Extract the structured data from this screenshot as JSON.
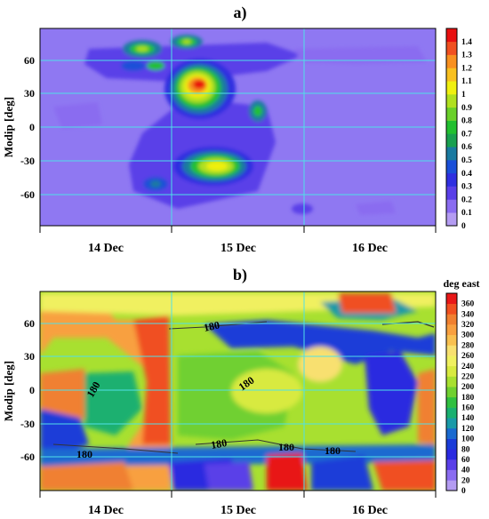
{
  "chart_data": [
    {
      "type": "heatmap",
      "panel_label": "a)",
      "ylabel": "Modip [deg]",
      "xlabel": "",
      "x_ticks": [
        "14 Dec",
        "15 Dec",
        "16 Dec"
      ],
      "y_ticks": [
        "60",
        "30",
        "0",
        "-30",
        "-60"
      ],
      "ylim": [
        -90,
        90
      ],
      "colorbar_title": "",
      "colorbar_ticks": [
        "0",
        "0.1",
        "0.2",
        "0.3",
        "0.4",
        "0.5",
        "0.6",
        "0.7",
        "0.8",
        "0.9",
        "1",
        "1.1",
        "1.2",
        "1.3",
        "1.4"
      ],
      "colorbar_colors": [
        "#b49cf2",
        "#8a6cf0",
        "#5a3fe8",
        "#2f2fe0",
        "#1a4fd8",
        "#1a7aa0",
        "#1aa050",
        "#22c030",
        "#6ad02a",
        "#b0e020",
        "#f0f010",
        "#f8c020",
        "#f89020",
        "#f05020",
        "#e81010"
      ],
      "grid": true,
      "features": [
        {
          "region": "14-15 Dec, Modip 60",
          "value": 0.6
        },
        {
          "region": "15 Dec, Modip 30",
          "value": 1.2
        },
        {
          "region": "15 Dec, Modip -35",
          "value": 0.9
        },
        {
          "region": "16 Dec, Modip 60",
          "value": 0.3
        }
      ]
    },
    {
      "type": "heatmap",
      "panel_label": "b)",
      "ylabel": "Modip [deg]",
      "xlabel": "",
      "x_ticks": [
        "14 Dec",
        "15 Dec",
        "16 Dec"
      ],
      "y_ticks": [
        "60",
        "30",
        "0",
        "-30",
        "-60"
      ],
      "ylim": [
        -90,
        90
      ],
      "colorbar_title": "deg east",
      "colorbar_ticks": [
        "0",
        "20",
        "40",
        "60",
        "80",
        "100",
        "120",
        "140",
        "160",
        "180",
        "200",
        "220",
        "240",
        "260",
        "280",
        "300",
        "320",
        "340",
        "360"
      ],
      "colorbar_colors": [
        "#b49cf2",
        "#8a6cf0",
        "#5a3fe8",
        "#2a2ae0",
        "#1a3cd8",
        "#1a6ad0",
        "#1a9aa8",
        "#1ab070",
        "#30c040",
        "#70d030",
        "#a8e030",
        "#d8ea40",
        "#f0f060",
        "#f8e070",
        "#f8c050",
        "#f8a040",
        "#f08030",
        "#f05020",
        "#e81818"
      ],
      "contour_label": "180",
      "grid": true
    }
  ]
}
